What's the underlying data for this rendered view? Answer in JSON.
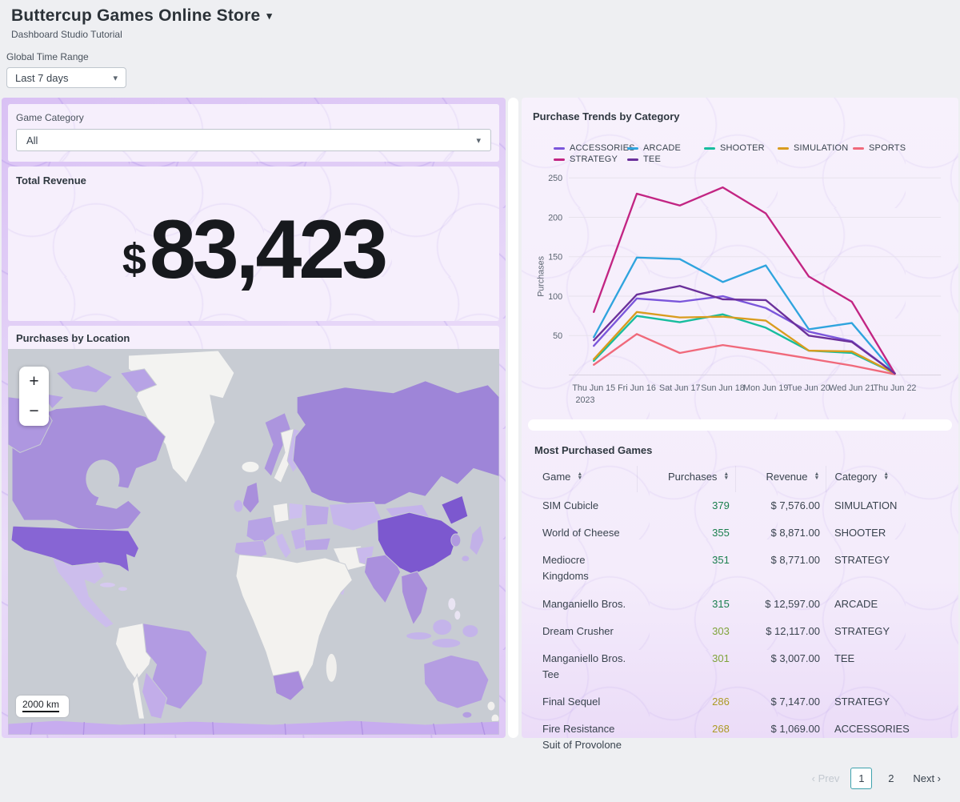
{
  "header": {
    "title": "Buttercup Games Online Store",
    "subtitle": "Dashboard Studio Tutorial"
  },
  "global_time_range": {
    "label": "Global Time Range",
    "value": "Last 7 days"
  },
  "filters": {
    "game_category_label": "Game Category",
    "game_category_value": "All"
  },
  "total_revenue": {
    "title": "Total Revenue",
    "currency": "$",
    "value": "83,423"
  },
  "map_panel": {
    "title": "Purchases by Location",
    "scale": "2000 km"
  },
  "chart_panel": {
    "title": "Purchase Trends by Category"
  },
  "chart_data": {
    "type": "line",
    "title": "Purchase Trends by Category",
    "xlabel": "",
    "ylabel": "Purchases",
    "x": [
      "Thu Jun 15",
      "Fri Jun 16",
      "Sat Jun 17",
      "Sun Jun 18",
      "Mon Jun 19",
      "Tue Jun 20",
      "Wed Jun 21",
      "Thu Jun 22"
    ],
    "x_first_sublabel": "2023",
    "ylim": [
      0,
      250
    ],
    "yticks": [
      50,
      100,
      150,
      200,
      250
    ],
    "grid": true,
    "legend_position": "top",
    "series": [
      {
        "name": "ACCESSORIES",
        "color": "#7B56DB",
        "values": [
          37,
          97,
          93,
          100,
          85,
          55,
          43,
          2
        ]
      },
      {
        "name": "ARCADE",
        "color": "#2FA4DE",
        "values": [
          48,
          149,
          147,
          118,
          139,
          58,
          66,
          2
        ]
      },
      {
        "name": "SHOOTER",
        "color": "#17BD9E",
        "values": [
          18,
          75,
          67,
          77,
          60,
          31,
          28,
          2
        ]
      },
      {
        "name": "SIMULATION",
        "color": "#D99C1E",
        "values": [
          20,
          80,
          73,
          74,
          69,
          31,
          30,
          2
        ]
      },
      {
        "name": "SPORTS",
        "color": "#F0697B",
        "values": [
          13,
          52,
          28,
          38,
          30,
          21,
          12,
          1
        ]
      },
      {
        "name": "STRATEGY",
        "color": "#C22583",
        "values": [
          80,
          230,
          215,
          238,
          205,
          125,
          93,
          2
        ]
      },
      {
        "name": "TEE",
        "color": "#6B309B",
        "values": [
          44,
          102,
          113,
          96,
          95,
          50,
          42,
          2
        ]
      }
    ]
  },
  "table_panel": {
    "title": "Most Purchased Games",
    "columns": [
      "Game",
      "Purchases",
      "Revenue",
      "Category"
    ],
    "rows": [
      {
        "game": "SIM Cubicle",
        "purchases": "379",
        "purchases_color": "#1A7F4D",
        "revenue": "$ 7,576.00",
        "category": "SIMULATION"
      },
      {
        "game": "World of Cheese",
        "purchases": "355",
        "purchases_color": "#1A7F4D",
        "revenue": "$ 8,871.00",
        "category": "SHOOTER"
      },
      {
        "game": "Mediocre Kingdoms",
        "purchases": "351",
        "purchases_color": "#1A7F4D",
        "revenue": "$ 8,771.00",
        "category": "STRATEGY"
      },
      {
        "game": "Manganiello Bros.",
        "purchases": "315",
        "purchases_color": "#1A7F4D",
        "revenue": "$ 12,597.00",
        "category": "ARCADE"
      },
      {
        "game": "Dream Crusher",
        "purchases": "303",
        "purchases_color": "#7FA33A",
        "revenue": "$ 12,117.00",
        "category": "STRATEGY"
      },
      {
        "game": "Manganiello Bros. Tee",
        "purchases": "301",
        "purchases_color": "#7FA33A",
        "revenue": "$ 3,007.00",
        "category": "TEE"
      },
      {
        "game": "Final Sequel",
        "purchases": "286",
        "purchases_color": "#AC9B24",
        "revenue": "$ 7,147.00",
        "category": "STRATEGY"
      },
      {
        "game": "Fire Resistance Suit of Provolone",
        "purchases": "268",
        "purchases_color": "#AC9B24",
        "revenue": "$ 1,069.00",
        "category": "ACCESSORIES"
      }
    ],
    "pagination": {
      "prev": "Prev",
      "pages": [
        "1",
        "2"
      ],
      "active_page": "1",
      "next": "Next"
    }
  },
  "icons": {
    "title_caret": "▾",
    "select_caret": "▾",
    "sort_asc": "▲",
    "sort_desc": "▼",
    "prev_chevron": "‹",
    "next_chevron": "›",
    "zoom_in": "+",
    "zoom_out": "−"
  },
  "colors": {
    "page_bg": "#EEEFF2",
    "left_container": "#DCC6F5",
    "right_container": "#F5EEFB",
    "panel_bg": "#F6EFFC",
    "big_number": "#17191D",
    "ocean": "#C8CCD3",
    "map_scale_low": "#CDBDEC",
    "map_scale_high": "#7C58CF",
    "no_data_land": "#F3F2F0",
    "pagination_active_border": "#3EA2AD"
  }
}
